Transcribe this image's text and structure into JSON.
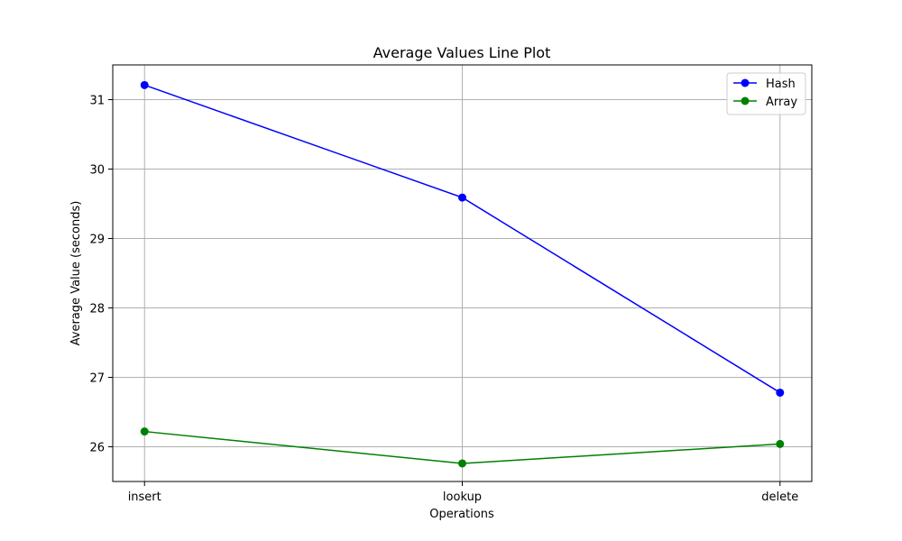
{
  "chart_data": {
    "type": "line",
    "title": "Average Values Line Plot",
    "xlabel": "Operations",
    "ylabel": "Average Value (seconds)",
    "categories": [
      "insert",
      "lookup",
      "delete"
    ],
    "ylim": [
      25.5,
      31.5
    ],
    "yticks": [
      26,
      27,
      28,
      29,
      30,
      31
    ],
    "grid": true,
    "legend_position": "top-right",
    "series": [
      {
        "name": "Hash",
        "color": "#0000ff",
        "marker": "circle",
        "values": [
          31.21,
          29.59,
          26.78
        ]
      },
      {
        "name": "Array",
        "color": "#008000",
        "marker": "circle",
        "values": [
          26.22,
          25.76,
          26.04
        ]
      }
    ]
  }
}
